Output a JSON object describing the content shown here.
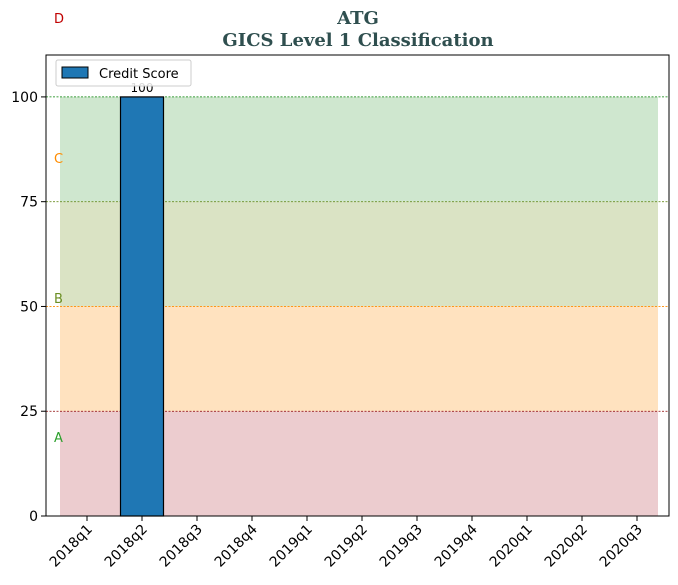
{
  "chart_data": {
    "type": "bar",
    "title": "ATG",
    "subtitle": "GICS Level 1 Classification",
    "categories": [
      "2018q1",
      "2018q2",
      "2018q3",
      "2018q4",
      "2019q1",
      "2019q2",
      "2019q3",
      "2019q4",
      "2020q1",
      "2020q2",
      "2020q3"
    ],
    "series": [
      {
        "name": "Credit Score",
        "values": [
          null,
          100,
          null,
          null,
          null,
          null,
          null,
          null,
          null,
          null,
          null
        ],
        "color": "#1f77b4"
      }
    ],
    "data_labels": [
      "",
      "100",
      "",
      "",
      "",
      "",
      "",
      "",
      "",
      "",
      ""
    ],
    "ylim": [
      0,
      110
    ],
    "yticks": [
      0,
      25,
      50,
      75,
      100
    ],
    "legend_position": "top-left",
    "bands": [
      {
        "label": "A",
        "from": 0,
        "to": 25,
        "fill": "#d99aa0",
        "label_color": "#2ca02c",
        "line_color": "#8b0000"
      },
      {
        "label": "B",
        "from": 25,
        "to": 50,
        "fill": "#ffc680",
        "label_color": "#6b8e23",
        "line_color": "#ff8c00"
      },
      {
        "label": "C",
        "from": 50,
        "to": 75,
        "fill": "#b5c88a",
        "label_color": "#ff8c00",
        "line_color": "#6b8e23"
      },
      {
        "label": "D",
        "from": 75,
        "to": 100,
        "fill": "#9fd09f",
        "label_color": "#c00000",
        "line_color": "#008000"
      }
    ]
  }
}
